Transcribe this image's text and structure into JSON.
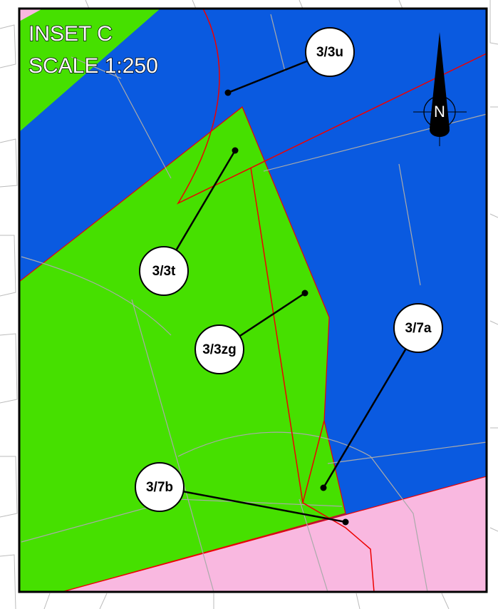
{
  "inset": {
    "title": "INSET C",
    "scale": "SCALE 1:250"
  },
  "north": "N",
  "labels": [
    {
      "text": "3/3u"
    },
    {
      "text": "3/3t"
    },
    {
      "text": "3/3zg"
    },
    {
      "text": "3/7a"
    },
    {
      "text": "3/7b"
    }
  ]
}
